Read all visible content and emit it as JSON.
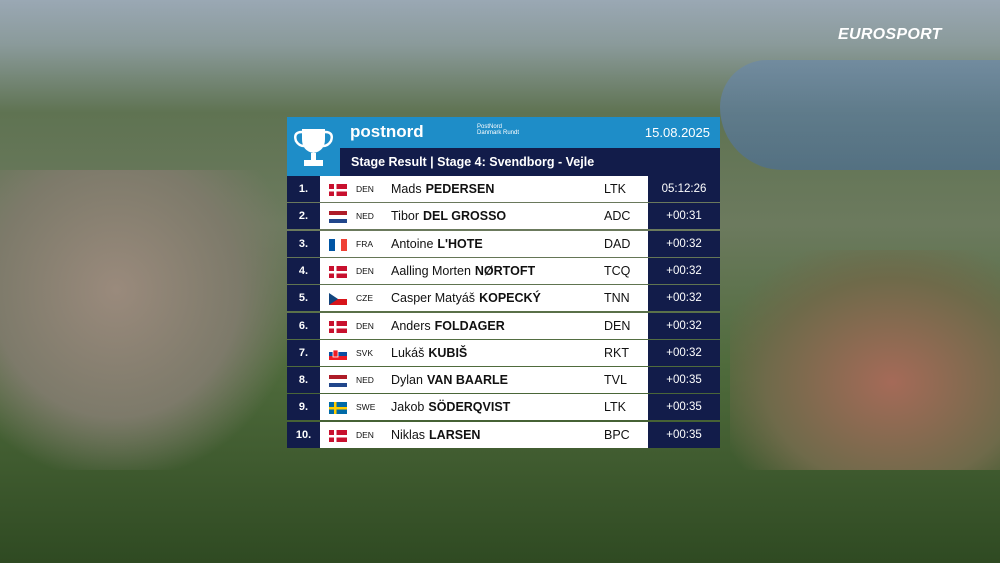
{
  "broadcaster": "EUROSPORT",
  "header": {
    "brand": "postnord",
    "race_logo": "PostNord Danmark Rundt",
    "date": "15.08.2025",
    "subtitle": "Stage Result | Stage 4: Svendborg - Vejle"
  },
  "table": {
    "rows": [
      [
        "1.",
        "DEN",
        "Mads",
        "PEDERSEN",
        "LTK",
        "05:12:26"
      ],
      [
        "2.",
        "NED",
        "Tibor",
        "DEL GROSSO",
        "ADC",
        "+00:31"
      ],
      [
        "3.",
        "FRA",
        "Antoine",
        "L'HOTE",
        "DAD",
        "+00:32"
      ],
      [
        "4.",
        "DEN",
        "Aalling Morten",
        "NØRTOFT",
        "TCQ",
        "+00:32"
      ],
      [
        "5.",
        "CZE",
        "Casper Matyáš",
        "KOPECKÝ",
        "TNN",
        "+00:32"
      ],
      [
        "6.",
        "DEN",
        "Anders",
        "FOLDAGER",
        "DEN",
        "+00:32"
      ],
      [
        "7.",
        "SVK",
        "Lukáš",
        "KUBIŠ",
        "RKT",
        "+00:32"
      ],
      [
        "8.",
        "NED",
        "Dylan",
        "VAN BAARLE",
        "TVL",
        "+00:35"
      ],
      [
        "9.",
        "SWE",
        "Jakob",
        "SÖDERQVIST",
        "LTK",
        "+00:35"
      ],
      [
        "10.",
        "DEN",
        "Niklas",
        "LARSEN",
        "BPC",
        "+00:35"
      ]
    ]
  }
}
